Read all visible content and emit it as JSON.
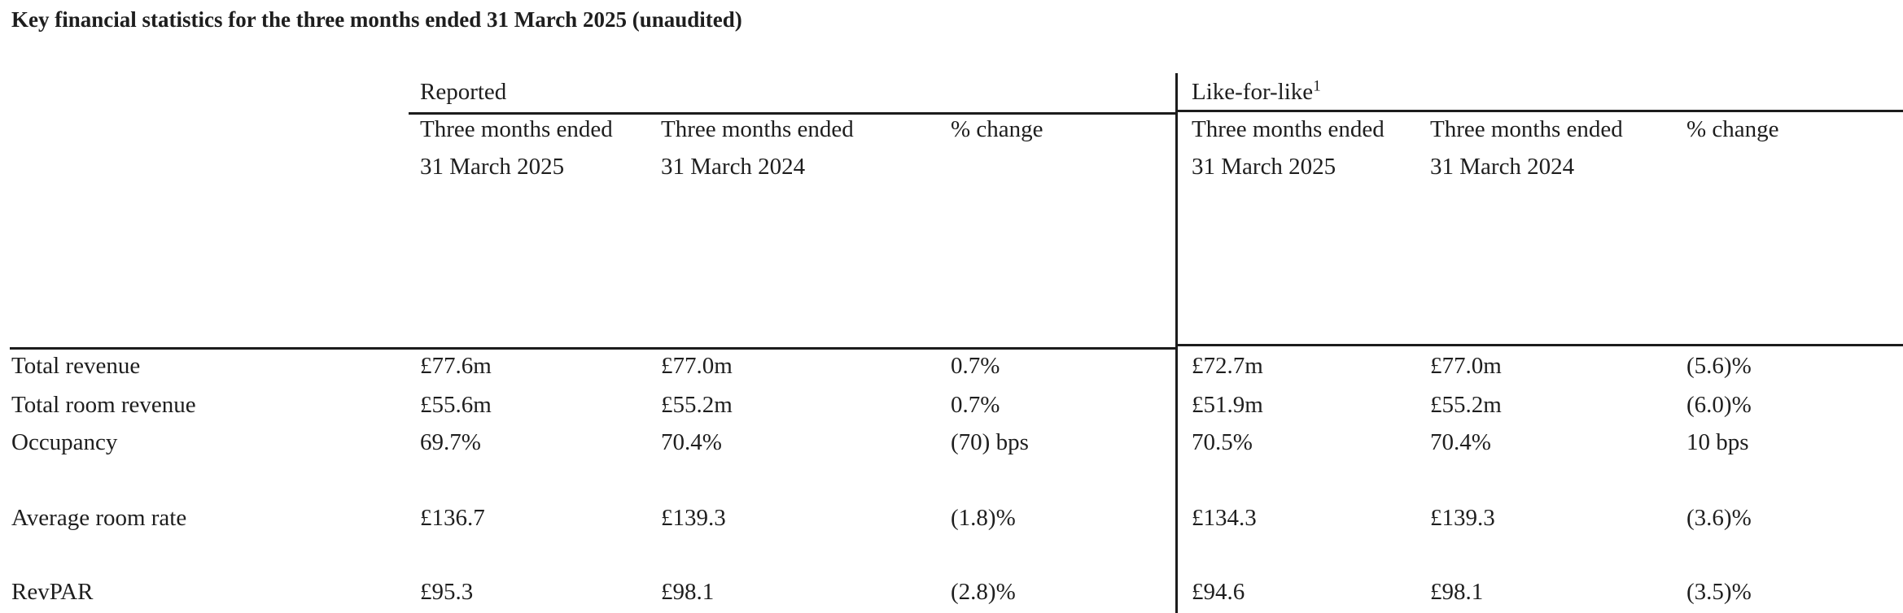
{
  "title": "Key financial statistics for the three months ended 31 March 2025 (unaudited)",
  "table": {
    "groups": [
      {
        "label": "Reported"
      },
      {
        "label": "Like-for-like",
        "footnote_marker": "1"
      }
    ],
    "column_headers": {
      "period_prefix": "Three months ended",
      "current_period": "31 March 2025",
      "prior_period": "31 March 2024",
      "change_label": "% change"
    },
    "rows": [
      {
        "label": "Total revenue",
        "reported": {
          "current": "£77.6m",
          "prior": "£77.0m",
          "change": "0.7%"
        },
        "like_for_like": {
          "current": "£72.7m",
          "prior": "£77.0m",
          "change": "(5.6)%"
        }
      },
      {
        "label": "Total room revenue",
        "reported": {
          "current": "£55.6m",
          "prior": "£55.2m",
          "change": "0.7%"
        },
        "like_for_like": {
          "current": "£51.9m",
          "prior": "£55.2m",
          "change": "(6.0)%"
        }
      },
      {
        "label": "Occupancy",
        "reported": {
          "current": "69.7%",
          "prior": "70.4%",
          "change": "(70) bps"
        },
        "like_for_like": {
          "current": "70.5%",
          "prior": "70.4%",
          "change": "10 bps"
        }
      },
      {
        "label": "Average room rate",
        "reported": {
          "current": "£136.7",
          "prior": "£139.3",
          "change": "(1.8)%"
        },
        "like_for_like": {
          "current": "£134.3",
          "prior": "£139.3",
          "change": "(3.6)%"
        }
      },
      {
        "label": "RevPAR",
        "reported": {
          "current": "£95.3",
          "prior": "£98.1",
          "change": "(2.8)%"
        },
        "like_for_like": {
          "current": "£94.6",
          "prior": "£98.1",
          "change": "(3.5)%"
        }
      }
    ]
  }
}
